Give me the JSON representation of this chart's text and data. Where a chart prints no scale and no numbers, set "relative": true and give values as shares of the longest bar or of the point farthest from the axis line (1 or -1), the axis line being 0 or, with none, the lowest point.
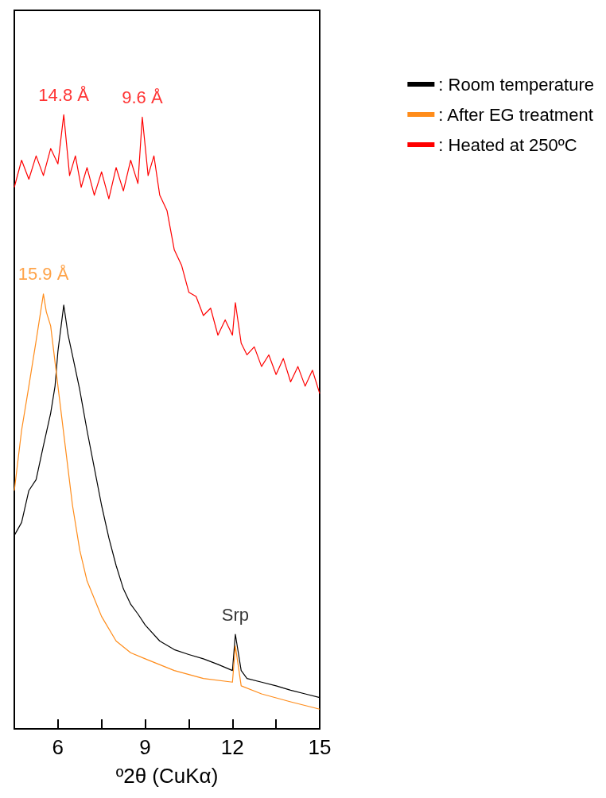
{
  "chart_data": {
    "type": "line",
    "relative": true,
    "xlabel": "º2θ (CuKα)",
    "xlim": [
      4.5,
      15
    ],
    "xticks": [
      6,
      {
        "value": 7.5,
        "label": null
      },
      9,
      {
        "value": 10.5,
        "label": null
      },
      12,
      {
        "value": 13.5,
        "label": null
      },
      15
    ],
    "legend": "top right",
    "grid": false,
    "marker": "none",
    "line_style": "solid",
    "series": [
      {
        "name": ": Room temperature",
        "color": "#000000",
        "x": [
          4.5,
          4.75,
          5.0,
          5.25,
          5.5,
          5.75,
          5.9,
          6.0,
          6.2,
          6.35,
          6.5,
          6.75,
          7.0,
          7.25,
          7.5,
          7.75,
          8.0,
          8.25,
          8.5,
          8.75,
          9.0,
          9.5,
          10.0,
          10.5,
          11.0,
          11.5,
          12.0,
          12.1,
          12.3,
          12.5,
          13.0,
          13.5,
          14.0,
          14.5,
          15.0
        ],
        "values": [
          0.315,
          0.336,
          0.388,
          0.406,
          0.461,
          0.514,
          0.558,
          0.615,
          0.69,
          0.641,
          0.608,
          0.552,
          0.486,
          0.425,
          0.364,
          0.311,
          0.266,
          0.228,
          0.203,
          0.187,
          0.169,
          0.143,
          0.129,
          0.121,
          0.114,
          0.105,
          0.095,
          0.154,
          0.095,
          0.082,
          0.076,
          0.07,
          0.063,
          0.057,
          0.051
        ]
      },
      {
        "name": ": After EG treatment",
        "color": "#ff8c1a",
        "x": [
          4.5,
          4.75,
          5.0,
          5.25,
          5.5,
          5.6,
          5.75,
          6.0,
          6.25,
          6.5,
          6.75,
          7.0,
          7.5,
          8.0,
          8.5,
          9.0,
          10.0,
          11.0,
          12.0,
          12.1,
          12.3,
          13.0,
          14.0,
          15.0
        ],
        "values": [
          0.388,
          0.486,
          0.558,
          0.632,
          0.708,
          0.679,
          0.656,
          0.558,
          0.461,
          0.364,
          0.291,
          0.241,
          0.183,
          0.143,
          0.124,
          0.114,
          0.095,
          0.082,
          0.076,
          0.135,
          0.07,
          0.057,
          0.044,
          0.032
        ]
      },
      {
        "name": ": Heated at 250ºC",
        "color": "#ff0000",
        "x": [
          4.5,
          4.75,
          5.0,
          5.25,
          5.5,
          5.75,
          6.0,
          6.2,
          6.4,
          6.6,
          6.8,
          7.0,
          7.25,
          7.5,
          7.75,
          8.0,
          8.25,
          8.5,
          8.75,
          8.9,
          9.1,
          9.3,
          9.5,
          9.75,
          10.0,
          10.25,
          10.5,
          10.75,
          11.0,
          11.25,
          11.5,
          11.75,
          12.0,
          12.1,
          12.3,
          12.5,
          12.75,
          13.0,
          13.25,
          13.5,
          13.75,
          14.0,
          14.25,
          14.5,
          14.75,
          15.0
        ],
        "values": [
          0.882,
          0.926,
          0.895,
          0.933,
          0.901,
          0.945,
          0.92,
          1.0,
          0.901,
          0.933,
          0.882,
          0.914,
          0.869,
          0.907,
          0.863,
          0.914,
          0.876,
          0.926,
          0.888,
          0.996,
          0.901,
          0.933,
          0.869,
          0.844,
          0.78,
          0.755,
          0.711,
          0.704,
          0.673,
          0.685,
          0.641,
          0.666,
          0.641,
          0.694,
          0.628,
          0.609,
          0.622,
          0.59,
          0.609,
          0.577,
          0.603,
          0.565,
          0.59,
          0.558,
          0.584,
          0.546
        ]
      }
    ],
    "annotations": [
      {
        "text": "14.8 Å",
        "x": 6.2,
        "y": 1.0
      },
      {
        "text": "9.6 Å",
        "x": 8.9,
        "y": 0.996
      },
      {
        "text": "15.9 Å",
        "x": 5.5,
        "y": 0.708
      },
      {
        "text": "Srp",
        "x": 12.1,
        "y": 0.154
      }
    ]
  }
}
